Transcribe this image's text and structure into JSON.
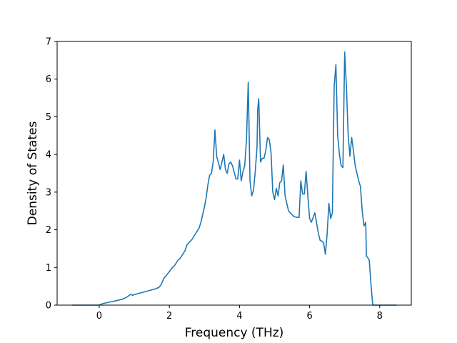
{
  "chart_data": {
    "type": "line",
    "title": "",
    "xlabel": "Frequency (THz)",
    "ylabel": "Density of States",
    "xlim": [
      -1.2,
      8.9
    ],
    "ylim": [
      0,
      7
    ],
    "xticks": [
      0,
      2,
      4,
      6,
      8
    ],
    "yticks": [
      0,
      1,
      2,
      3,
      4,
      5,
      6,
      7
    ],
    "grid": false,
    "legend": "none",
    "line_color": "#1f77b4",
    "series": [
      {
        "x": [
          -0.78,
          0.0,
          0.1,
          0.3,
          0.5,
          0.7,
          0.8,
          0.9,
          0.95,
          1.0,
          1.2,
          1.4,
          1.6,
          1.7,
          1.75,
          1.85,
          1.95,
          2.05,
          2.1,
          2.15,
          2.25,
          2.3,
          2.35,
          2.45,
          2.5,
          2.55,
          2.65,
          2.75,
          2.85,
          2.9,
          3.0,
          3.05,
          3.1,
          3.15,
          3.2,
          3.25,
          3.3,
          3.35,
          3.45,
          3.5,
          3.55,
          3.6,
          3.65,
          3.7,
          3.75,
          3.8,
          3.9,
          3.95,
          4.0,
          4.05,
          4.1,
          4.15,
          4.2,
          4.25,
          4.3,
          4.35,
          4.4,
          4.45,
          4.5,
          4.52,
          4.55,
          4.6,
          4.65,
          4.7,
          4.75,
          4.8,
          4.85,
          4.9,
          4.95,
          5.0,
          5.05,
          5.1,
          5.15,
          5.2,
          5.25,
          5.3,
          5.35,
          5.4,
          5.45,
          5.55,
          5.65,
          5.7,
          5.75,
          5.8,
          5.85,
          5.9,
          5.95,
          6.0,
          6.05,
          6.15,
          6.25,
          6.3,
          6.35,
          6.4,
          6.45,
          6.5,
          6.55,
          6.6,
          6.65,
          6.7,
          6.75,
          6.8,
          6.85,
          6.9,
          6.95,
          7.0,
          7.05,
          7.1,
          7.15,
          7.2,
          7.25,
          7.3,
          7.35,
          7.4,
          7.45,
          7.5,
          7.55,
          7.6,
          7.62,
          7.65,
          7.7,
          7.75,
          7.8,
          7.9,
          8.1,
          8.3,
          8.48
        ],
        "y": [
          0.0,
          0.0,
          0.04,
          0.08,
          0.12,
          0.17,
          0.22,
          0.29,
          0.26,
          0.28,
          0.33,
          0.38,
          0.43,
          0.47,
          0.52,
          0.72,
          0.83,
          0.95,
          1.01,
          1.05,
          1.2,
          1.23,
          1.3,
          1.45,
          1.6,
          1.65,
          1.75,
          1.9,
          2.05,
          2.2,
          2.6,
          2.85,
          3.2,
          3.45,
          3.5,
          3.8,
          4.65,
          3.95,
          3.6,
          3.8,
          4.0,
          3.6,
          3.5,
          3.75,
          3.8,
          3.7,
          3.35,
          3.35,
          3.85,
          3.3,
          3.55,
          3.7,
          4.4,
          5.92,
          3.3,
          2.9,
          3.05,
          3.55,
          4.2,
          5.2,
          5.48,
          3.8,
          3.9,
          3.9,
          4.1,
          4.45,
          4.4,
          4.05,
          3.0,
          2.8,
          3.1,
          2.9,
          3.25,
          3.3,
          3.72,
          2.9,
          2.7,
          2.5,
          2.45,
          2.35,
          2.33,
          2.33,
          3.3,
          2.95,
          2.95,
          3.55,
          2.9,
          2.3,
          2.2,
          2.45,
          1.9,
          1.72,
          1.7,
          1.65,
          1.35,
          1.9,
          2.7,
          2.3,
          2.45,
          5.8,
          6.38,
          4.5,
          4.0,
          3.7,
          3.65,
          6.72,
          5.8,
          4.5,
          3.95,
          4.45,
          4.1,
          3.7,
          3.5,
          3.3,
          3.15,
          2.5,
          2.1,
          2.2,
          1.3,
          1.27,
          1.2,
          0.55,
          0.0,
          0.0,
          0.0,
          0.0,
          0.0
        ]
      }
    ]
  }
}
